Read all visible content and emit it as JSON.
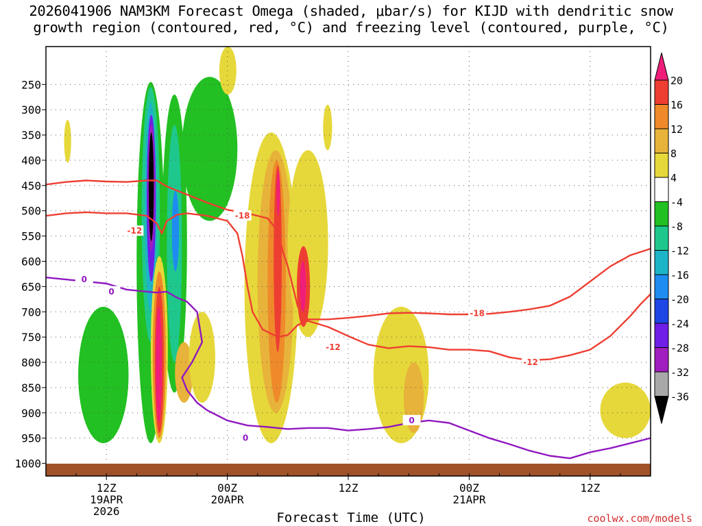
{
  "title_line1": "2026041906 NAM3KM Forecast Omega (shaded, μbar/s) for KIJD with dendritic snow",
  "title_line2": "growth region (contoured, red, °C) and freezing level (contoured, purple, °C)",
  "credit": "coolwx.com/models",
  "chart_data": {
    "type": "heatmap",
    "title": "2026041906 NAM3KM Forecast Omega (shaded, μbar/s) for KIJD with dendritic snow growth region (contoured, red, °C) and freezing level (contoured, purple, °C)",
    "xlabel": "Forecast Time (UTC)",
    "ylabel": "",
    "y_axis_ticks": [
      "250",
      "300",
      "350",
      "400",
      "450",
      "500",
      "550",
      "600",
      "650",
      "700",
      "750",
      "800",
      "850",
      "900",
      "950",
      "1000"
    ],
    "y_axis_values": [
      250,
      300,
      350,
      400,
      450,
      500,
      550,
      600,
      650,
      700,
      750,
      800,
      850,
      900,
      950,
      1000
    ],
    "ylim_hpa": [
      175,
      1025
    ],
    "x_axis_ticks": [
      {
        "hour": 0,
        "line1": "12Z",
        "line2": "19APR",
        "line3": "2026"
      },
      {
        "hour": 12,
        "line1": "00Z",
        "line2": "20APR",
        "line3": ""
      },
      {
        "hour": 24,
        "line1": "12Z",
        "line2": "",
        "line3": ""
      },
      {
        "hour": 36,
        "line1": "00Z",
        "line2": "21APR",
        "line3": ""
      },
      {
        "hour": 48,
        "line1": "12Z",
        "line2": "",
        "line3": ""
      }
    ],
    "xlim_hours_from_19APR12Z": [
      -6,
      54
    ],
    "colorbar": {
      "labels": [
        "20",
        "16",
        "12",
        "8",
        "4",
        "-4",
        "-8",
        "-12",
        "-16",
        "-20",
        "-24",
        "-28",
        "-32",
        "-36"
      ],
      "colors": [
        "#f01e7a",
        "#ee3e32",
        "#ee8a2a",
        "#e8b33a",
        "#e6d83a",
        "#ffffff",
        "#22c022",
        "#1ec88c",
        "#1eb4c8",
        "#1e8cf0",
        "#1e46e6",
        "#6e1ee6",
        "#a01ebe",
        "#a8a8a8",
        "#000000"
      ]
    },
    "contours": [
      {
        "name": "dendritic-top",
        "label": "-18",
        "color": "#ee3e32",
        "points": [
          [
            -6,
            448
          ],
          [
            -4,
            443
          ],
          [
            -2,
            440
          ],
          [
            0,
            442
          ],
          [
            2,
            443
          ],
          [
            4,
            440
          ],
          [
            5,
            440
          ],
          [
            6,
            452
          ],
          [
            8,
            468
          ],
          [
            10,
            484
          ],
          [
            12,
            498
          ],
          [
            14,
            505
          ],
          [
            16,
            515
          ],
          [
            17,
            540
          ],
          [
            17.5,
            580
          ],
          [
            18,
            610
          ],
          [
            18.5,
            650
          ],
          [
            19,
            690
          ],
          [
            20,
            715
          ],
          [
            22,
            715
          ],
          [
            24,
            712
          ],
          [
            26,
            708
          ],
          [
            28,
            703
          ],
          [
            30,
            702
          ],
          [
            32,
            703
          ],
          [
            34,
            705
          ],
          [
            36,
            705
          ],
          [
            38,
            704
          ],
          [
            40,
            700
          ],
          [
            42,
            695
          ],
          [
            44,
            688
          ],
          [
            46,
            670
          ],
          [
            48,
            640
          ],
          [
            50,
            610
          ],
          [
            52,
            588
          ],
          [
            54,
            575
          ]
        ]
      },
      {
        "name": "dendritic-bottom",
        "label": "-12",
        "color": "#ee3e32",
        "points": [
          [
            -6,
            510
          ],
          [
            -4,
            505
          ],
          [
            -2,
            503
          ],
          [
            0,
            505
          ],
          [
            2,
            505
          ],
          [
            4,
            510
          ],
          [
            5,
            525
          ],
          [
            5.5,
            545
          ],
          [
            6,
            520
          ],
          [
            7,
            508
          ],
          [
            8,
            505
          ],
          [
            10,
            510
          ],
          [
            12,
            520
          ],
          [
            13,
            545
          ],
          [
            13.5,
            590
          ],
          [
            14,
            650
          ],
          [
            14.5,
            700
          ],
          [
            15.5,
            735
          ],
          [
            17,
            750
          ],
          [
            18,
            746
          ],
          [
            19,
            726
          ],
          [
            20,
            718
          ],
          [
            22,
            730
          ],
          [
            24,
            748
          ],
          [
            26,
            765
          ],
          [
            28,
            772
          ],
          [
            30,
            768
          ],
          [
            32,
            770
          ],
          [
            34,
            775
          ],
          [
            36,
            775
          ],
          [
            38,
            778
          ],
          [
            40,
            790
          ],
          [
            42,
            796
          ],
          [
            44,
            794
          ],
          [
            46,
            786
          ],
          [
            48,
            775
          ],
          [
            50,
            748
          ],
          [
            52,
            708
          ],
          [
            53,
            685
          ],
          [
            54,
            665
          ]
        ]
      },
      {
        "name": "freezing-level",
        "label": "0",
        "color": "#9018c0",
        "points": [
          [
            -6,
            632
          ],
          [
            -4,
            636
          ],
          [
            -2,
            640
          ],
          [
            0,
            644
          ],
          [
            2,
            656
          ],
          [
            4,
            660
          ],
          [
            5,
            662
          ],
          [
            6,
            660
          ],
          [
            7,
            672
          ],
          [
            8,
            680
          ],
          [
            9,
            700
          ],
          [
            9.5,
            760
          ],
          [
            8.5,
            800
          ],
          [
            7.5,
            830
          ],
          [
            8,
            855
          ],
          [
            9,
            880
          ],
          [
            10,
            895
          ],
          [
            11,
            905
          ],
          [
            12,
            915
          ],
          [
            14,
            925
          ],
          [
            16,
            928
          ],
          [
            18,
            932
          ],
          [
            20,
            930
          ],
          [
            22,
            930
          ],
          [
            24,
            935
          ],
          [
            26,
            932
          ],
          [
            28,
            928
          ],
          [
            30,
            920
          ],
          [
            32,
            915
          ],
          [
            34,
            920
          ],
          [
            36,
            935
          ],
          [
            38,
            950
          ],
          [
            40,
            962
          ],
          [
            42,
            975
          ],
          [
            44,
            985
          ],
          [
            46,
            990
          ],
          [
            48,
            978
          ],
          [
            50,
            970
          ],
          [
            52,
            960
          ],
          [
            54,
            950
          ]
        ]
      }
    ],
    "contour_labels": [
      {
        "text": "-18",
        "hour": 13.5,
        "hpa": 510,
        "color": "#ee3e32"
      },
      {
        "text": "-12",
        "hour": 2.8,
        "hpa": 540,
        "color": "#ee3e32"
      },
      {
        "text": "-18",
        "hour": 36.8,
        "hpa": 703,
        "color": "#ee3e32"
      },
      {
        "text": "-12",
        "hour": 22.5,
        "hpa": 770,
        "color": "#ee3e32"
      },
      {
        "text": "-12",
        "hour": 42.1,
        "hpa": 800,
        "color": "#ee3e32"
      },
      {
        "text": "0",
        "hour": -2.2,
        "hpa": 636,
        "color": "#9018c0"
      },
      {
        "text": "0",
        "hour": 0.5,
        "hpa": 660,
        "color": "#9018c0"
      },
      {
        "text": "0",
        "hour": 13.8,
        "hpa": 950,
        "color": "#9018c0"
      },
      {
        "text": "0",
        "hour": 30.3,
        "hpa": 915,
        "color": "#9018c0"
      }
    ],
    "omega_regions": [
      {
        "name": "upward-west-outer",
        "level": "-8",
        "hour": [
          -2.8,
          2.2
        ],
        "hpa": [
          690,
          960
        ]
      },
      {
        "name": "upward-core-outer",
        "level": "-8",
        "hour": [
          3.0,
          5.8
        ],
        "hpa": [
          245,
          960
        ]
      },
      {
        "name": "upward-core-teal",
        "level": "-12",
        "hour": [
          3.5,
          5.3
        ],
        "hpa": [
          255,
          760
        ]
      },
      {
        "name": "upward-core-cyan",
        "level": "-16",
        "hour": [
          3.8,
          5.0
        ],
        "hpa": [
          285,
          700
        ]
      },
      {
        "name": "upward-core-purple",
        "level": "-28",
        "hour": [
          4.0,
          4.9
        ],
        "hpa": [
          310,
          640
        ]
      },
      {
        "name": "upward-core-gray",
        "level": "-32",
        "hour": [
          4.1,
          4.8
        ],
        "hpa": [
          330,
          580
        ]
      },
      {
        "name": "upward-core-black",
        "level": "-36",
        "hour": [
          4.2,
          4.7
        ],
        "hpa": [
          345,
          560
        ]
      },
      {
        "name": "upward-second-outer",
        "level": "-8",
        "hour": [
          5.5,
          8.0
        ],
        "hpa": [
          270,
          860
        ]
      },
      {
        "name": "upward-second-teal",
        "level": "-12",
        "hour": [
          6.0,
          7.5
        ],
        "hpa": [
          330,
          800
        ]
      },
      {
        "name": "upward-second-blue",
        "level": "-20",
        "hour": [
          6.5,
          7.2
        ],
        "hpa": [
          460,
          620
        ]
      },
      {
        "name": "upward-upper-right",
        "level": "-8",
        "hour": [
          7.5,
          13.0
        ],
        "hpa": [
          235,
          520
        ]
      },
      {
        "name": "downward-low-core-yellow",
        "level": "4",
        "hour": [
          4.4,
          6.1
        ],
        "hpa": [
          590,
          960
        ]
      },
      {
        "name": "downward-low-core-orange",
        "level": "12",
        "hour": [
          4.6,
          5.9
        ],
        "hpa": [
          620,
          950
        ]
      },
      {
        "name": "downward-low-core-red",
        "level": "16",
        "hour": [
          4.8,
          5.7
        ],
        "hpa": [
          650,
          940
        ]
      },
      {
        "name": "downward-low-core-magenta",
        "level": "20",
        "hour": [
          4.9,
          5.5
        ],
        "hpa": [
          690,
          920
        ]
      },
      {
        "name": "downward-orange-blob",
        "level": "8",
        "hour": [
          6.8,
          8.6
        ],
        "hpa": [
          760,
          880
        ]
      },
      {
        "name": "downward-yellow-blob-2",
        "level": "4",
        "hour": [
          8.2,
          10.8
        ],
        "hpa": [
          700,
          880
        ]
      },
      {
        "name": "downward-central-yellow",
        "level": "4",
        "hour": [
          13.7,
          19.0
        ],
        "hpa": [
          345,
          960
        ]
      },
      {
        "name": "downward-central-gold",
        "level": "8",
        "hour": [
          15.0,
          18.6
        ],
        "hpa": [
          380,
          900
        ]
      },
      {
        "name": "downward-central-orange",
        "level": "12",
        "hour": [
          16.0,
          17.8
        ],
        "hpa": [
          400,
          880
        ]
      },
      {
        "name": "downward-central-red",
        "level": "16",
        "hour": [
          16.6,
          17.4
        ],
        "hpa": [
          410,
          780
        ]
      },
      {
        "name": "downward-central-magenta",
        "level": "20",
        "hour": [
          16.9,
          17.2
        ],
        "hpa": [
          420,
          510
        ]
      },
      {
        "name": "downward-central-lower-yellow",
        "level": "4",
        "hour": [
          18.0,
          22.0
        ],
        "hpa": [
          380,
          750
        ]
      },
      {
        "name": "downward-central-lower-red",
        "level": "16",
        "hour": [
          18.9,
          20.2
        ],
        "hpa": [
          570,
          730
        ]
      },
      {
        "name": "downward-central-lower-magenta",
        "level": "20",
        "hour": [
          19.2,
          19.8
        ],
        "hpa": [
          600,
          700
        ]
      },
      {
        "name": "downward-right-yellow",
        "level": "4",
        "hour": [
          26.5,
          32.0
        ],
        "hpa": [
          690,
          960
        ]
      },
      {
        "name": "downward-right-gold",
        "level": "8",
        "hour": [
          29.5,
          31.5
        ],
        "hpa": [
          800,
          940
        ]
      },
      {
        "name": "downward-far-right-yellow",
        "level": "4",
        "hour": [
          49.0,
          54.0
        ],
        "hpa": [
          840,
          950
        ]
      },
      {
        "name": "downward-upper-spike",
        "level": "4",
        "hour": [
          11.2,
          12.9
        ],
        "hpa": [
          175,
          270
        ]
      },
      {
        "name": "downward-left-spike",
        "level": "4",
        "hour": [
          -4.2,
          -3.5
        ],
        "hpa": [
          320,
          405
        ]
      },
      {
        "name": "downward-mid-spike",
        "level": "4",
        "hour": [
          21.5,
          22.4
        ],
        "hpa": [
          290,
          380
        ]
      }
    ]
  }
}
